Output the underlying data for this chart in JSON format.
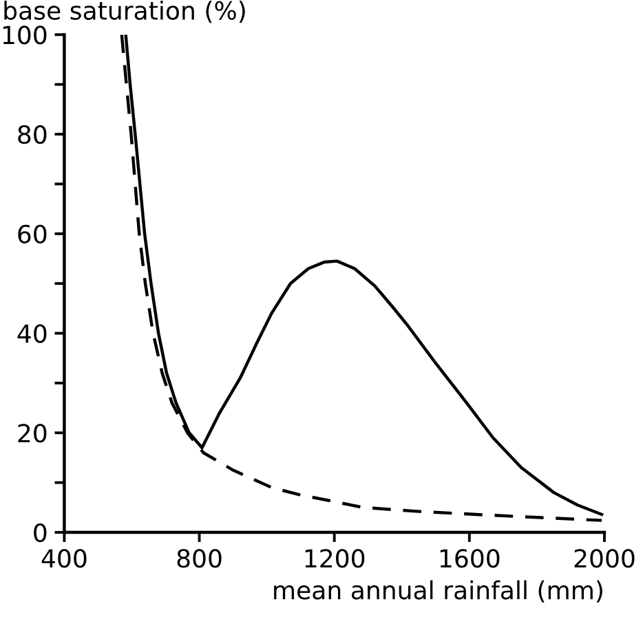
{
  "chart_data": {
    "type": "line",
    "ylabel": "base saturation (%)",
    "xlabel": "mean annual rainfall (mm)",
    "xlim": [
      400,
      2000
    ],
    "ylim": [
      0,
      100
    ],
    "xticks": [
      400,
      800,
      1200,
      1600,
      2000
    ],
    "yticks": [
      0,
      {
        "value": 10,
        "label": null
      },
      20,
      {
        "value": 30,
        "label": null
      },
      40,
      {
        "value": 50,
        "label": null
      },
      60,
      {
        "value": 70,
        "label": null
      },
      80,
      {
        "value": 90,
        "label": null
      },
      100
    ],
    "grid": false,
    "legend": false,
    "marker": "none",
    "series": [
      {
        "color": "#000000",
        "line_style": "solid",
        "x": [
          582,
          595,
          610,
          624,
          638,
          657,
          679,
          703,
          731,
          770,
          808,
          860,
          921,
          970,
          1014,
          1070,
          1123,
          1170,
          1208,
          1260,
          1320,
          1370,
          1418,
          1500,
          1592,
          1670,
          1754,
          1850,
          1920,
          1992
        ],
        "values": [
          100,
          90,
          80,
          70,
          60,
          50,
          40,
          32,
          26,
          20,
          17,
          24,
          31,
          38,
          44,
          50,
          53,
          54.3,
          54.5,
          53,
          49.5,
          45.5,
          41.5,
          34,
          26,
          19,
          13,
          8,
          5.5,
          3.6
        ]
      },
      {
        "color": "#000000",
        "line_style": "dashed",
        "x": [
          570,
          584,
          598,
          610,
          622,
          640,
          663,
          690,
          719,
          765,
          812,
          900,
          1014,
          1100,
          1176,
          1285,
          1450,
          1620,
          1800,
          1992
        ],
        "values": [
          100,
          90,
          80,
          70,
          60,
          50,
          40,
          32,
          26,
          20,
          16,
          12.5,
          9,
          7.5,
          6.5,
          5,
          4.2,
          3.6,
          3,
          2.4
        ]
      }
    ]
  }
}
